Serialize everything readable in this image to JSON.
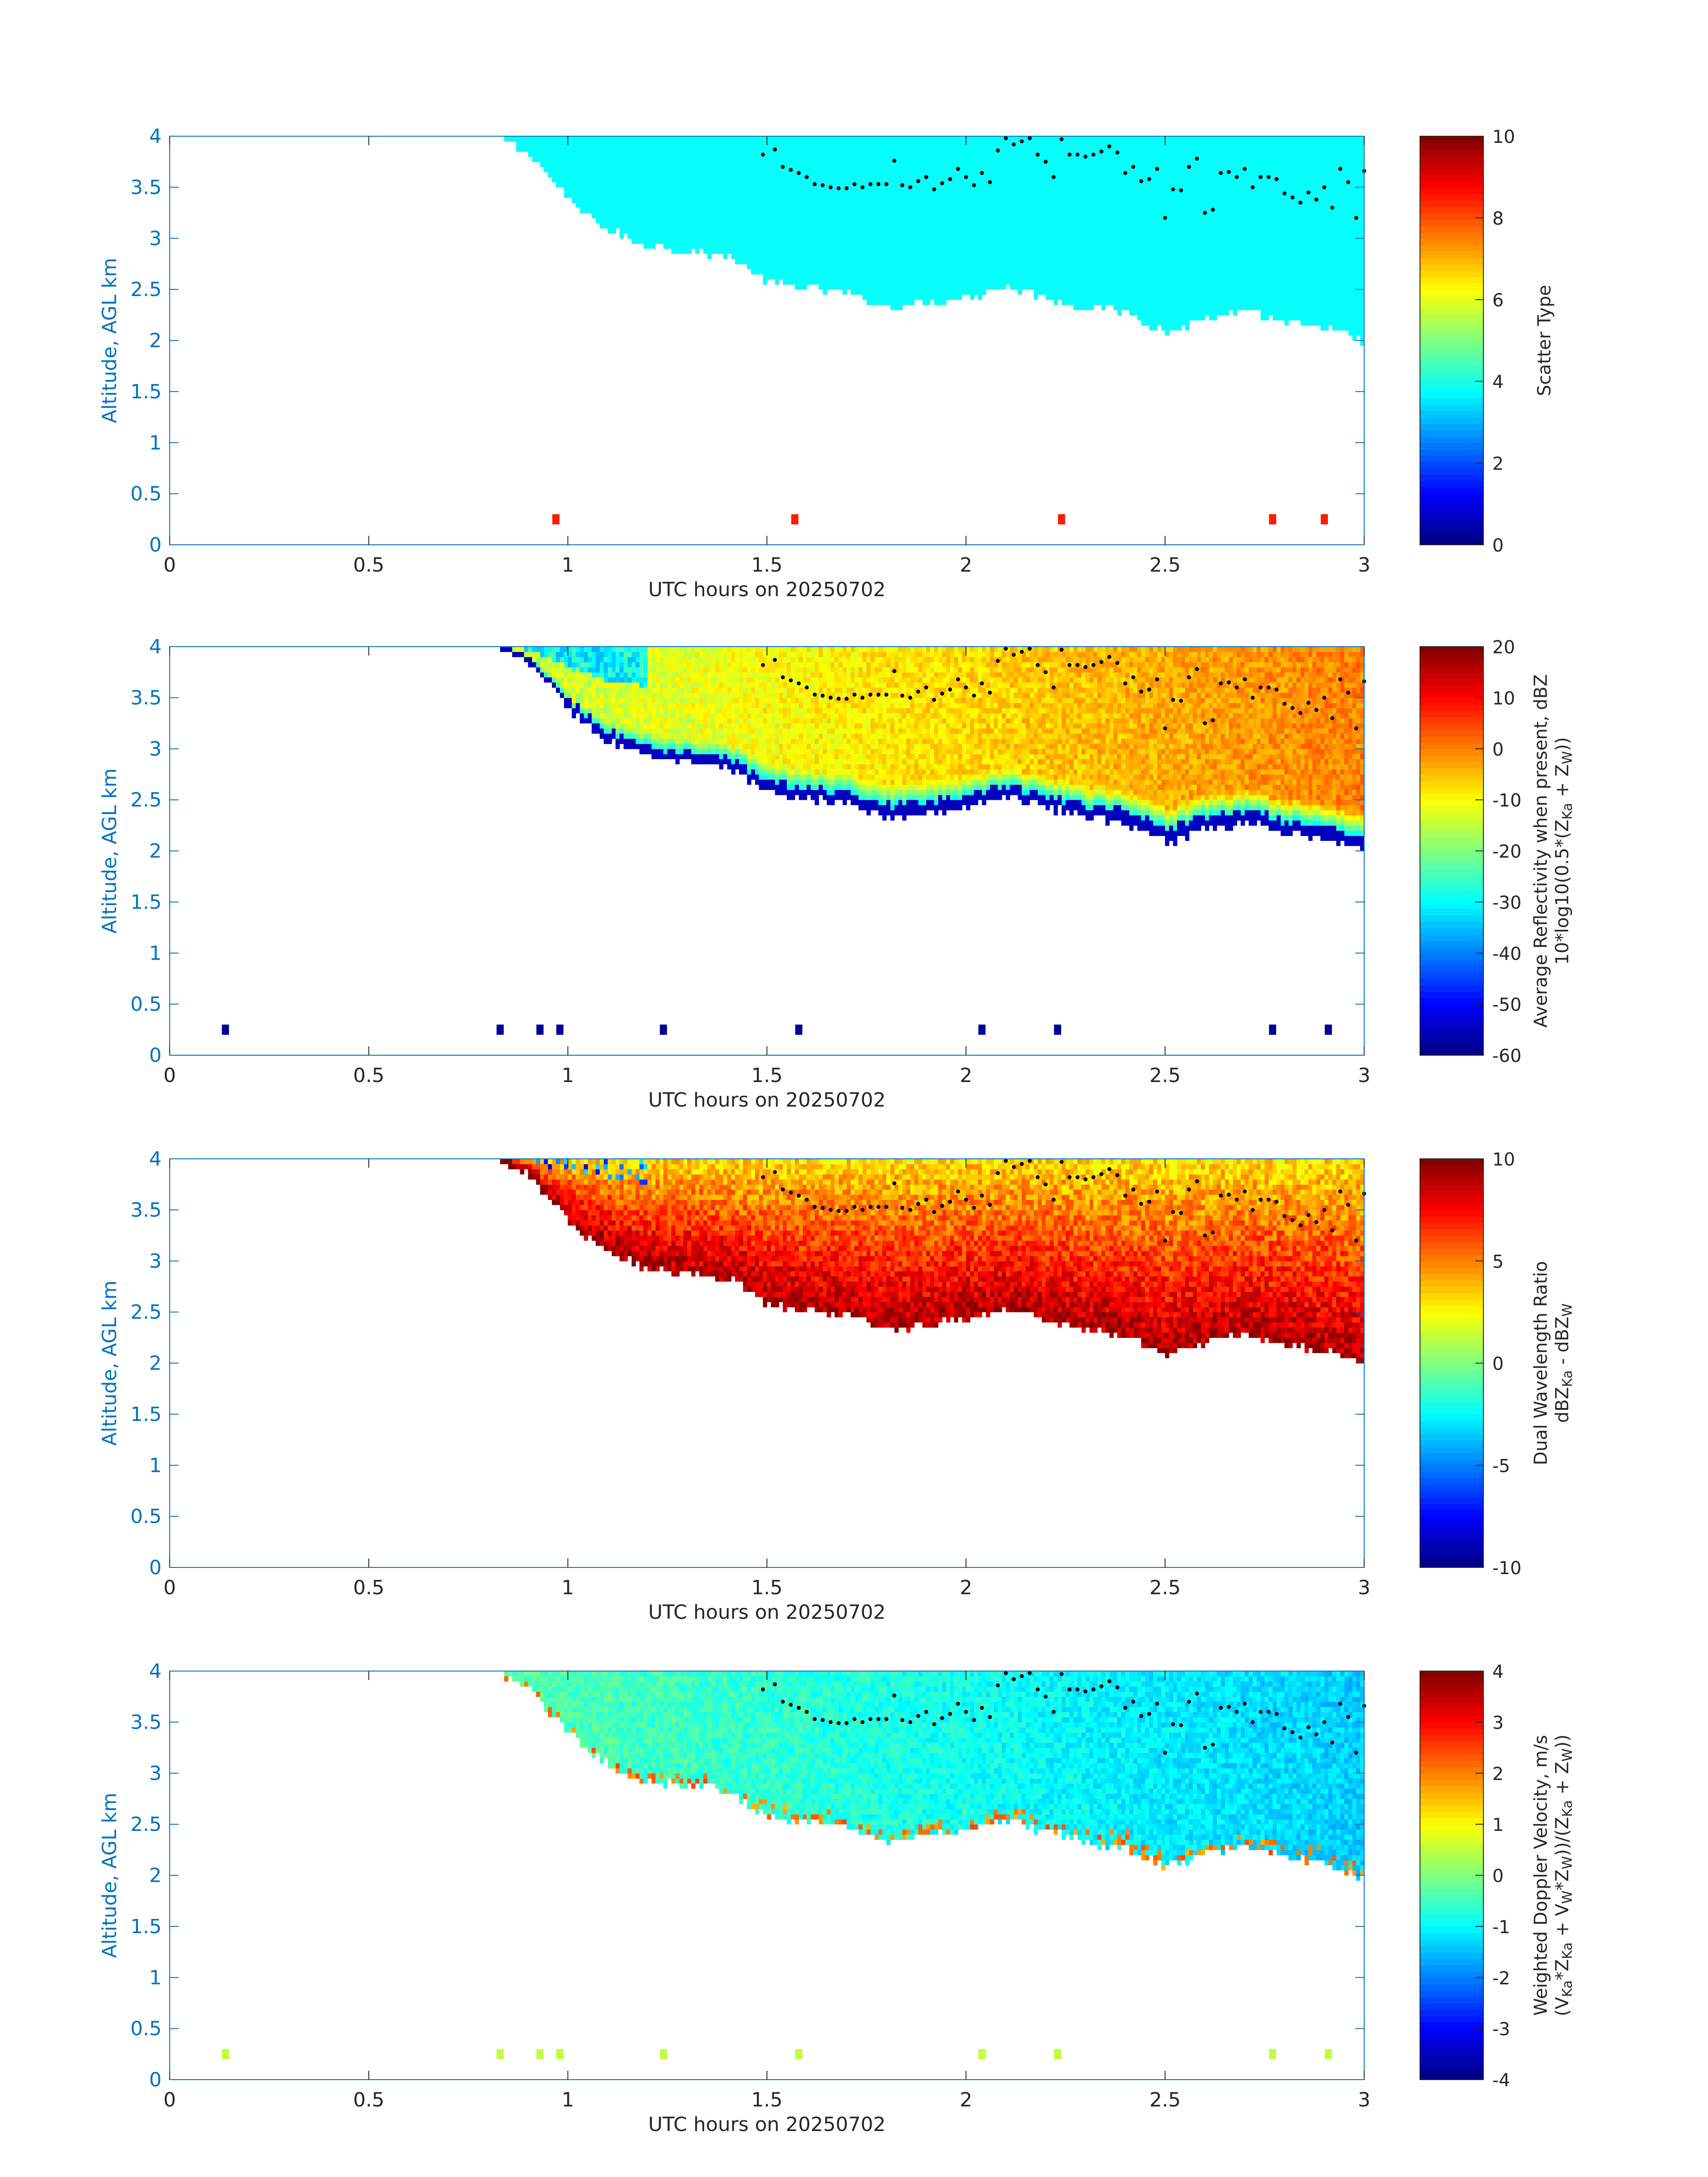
{
  "figure": {
    "shared": {
      "xlabel": "UTC hours on 20250702",
      "ylabel": "Altitude, AGL km",
      "xticks": [
        "0",
        "0.5",
        "1",
        "1.5",
        "2",
        "2.5",
        "3"
      ],
      "yticks": [
        "0",
        "0.5",
        "1",
        "1.5",
        "2",
        "2.5",
        "3",
        "3.5",
        "4"
      ],
      "xlim": [
        0,
        3
      ],
      "ylim": [
        0,
        4
      ],
      "axis_color": "#0072bd"
    }
  },
  "chart_data": [
    {
      "type": "heatmap",
      "xlabel": "UTC hours on 20250702",
      "ylabel": "Altitude, AGL km",
      "xlim": [
        0,
        3
      ],
      "ylim": [
        0,
        4
      ],
      "colorbar": {
        "label_lines": [
          "Scatter Type"
        ],
        "clim": [
          0,
          10
        ],
        "ticks": [
          "0",
          "2",
          "4",
          "6",
          "8",
          "10"
        ],
        "colormap": "jet"
      },
      "cloud": {
        "value": 3.8,
        "start_hour": 0.82,
        "top_km": 4.0,
        "base_km": [
          [
            0.82,
            4.0
          ],
          [
            0.9,
            3.85
          ],
          [
            1.0,
            3.4
          ],
          [
            1.1,
            3.1
          ],
          [
            1.2,
            2.95
          ],
          [
            1.3,
            2.9
          ],
          [
            1.4,
            2.85
          ],
          [
            1.5,
            2.6
          ],
          [
            1.55,
            2.55
          ],
          [
            1.7,
            2.5
          ],
          [
            1.8,
            2.35
          ],
          [
            1.9,
            2.4
          ],
          [
            2.0,
            2.45
          ],
          [
            2.1,
            2.55
          ],
          [
            2.2,
            2.45
          ],
          [
            2.3,
            2.35
          ],
          [
            2.4,
            2.3
          ],
          [
            2.5,
            2.1
          ],
          [
            2.6,
            2.25
          ],
          [
            2.7,
            2.3
          ],
          [
            2.8,
            2.2
          ],
          [
            2.9,
            2.15
          ],
          [
            3.0,
            2.0
          ]
        ]
      },
      "near_surface_marks": [
        {
          "hour": 0.97,
          "value": 8.5
        },
        {
          "hour": 1.57,
          "value": 8.5
        },
        {
          "hour": 2.24,
          "value": 8.5
        },
        {
          "hour": 2.77,
          "value": 8.5
        },
        {
          "hour": 2.9,
          "value": 8.5
        }
      ]
    },
    {
      "type": "heatmap",
      "xlabel": "UTC hours on 20250702",
      "ylabel": "Altitude, AGL km",
      "xlim": [
        0,
        3
      ],
      "ylim": [
        0,
        4
      ],
      "colorbar": {
        "label_lines": [
          "Average Reflectivity when present, dBZ",
          "10*log10(0.5*(Z",
          "Ka",
          " + Z",
          "W",
          "))"
        ],
        "clim": [
          -60,
          20
        ],
        "ticks": [
          "-60",
          "-50",
          "-40",
          "-30",
          "-20",
          "-10",
          "0",
          "10",
          "20"
        ],
        "colormap": "jet"
      },
      "cloud": {
        "profile": "reflectivity",
        "base_km": [
          [
            0.82,
            4.0
          ],
          [
            0.9,
            3.85
          ],
          [
            1.0,
            3.4
          ],
          [
            1.1,
            3.1
          ],
          [
            1.2,
            2.95
          ],
          [
            1.3,
            2.9
          ],
          [
            1.4,
            2.85
          ],
          [
            1.5,
            2.6
          ],
          [
            1.55,
            2.55
          ],
          [
            1.7,
            2.5
          ],
          [
            1.8,
            2.35
          ],
          [
            1.9,
            2.4
          ],
          [
            2.0,
            2.45
          ],
          [
            2.1,
            2.55
          ],
          [
            2.2,
            2.45
          ],
          [
            2.3,
            2.35
          ],
          [
            2.4,
            2.3
          ],
          [
            2.5,
            2.1
          ],
          [
            2.6,
            2.25
          ],
          [
            2.7,
            2.3
          ],
          [
            2.8,
            2.2
          ],
          [
            2.9,
            2.15
          ],
          [
            3.0,
            2.0
          ]
        ],
        "typical_dbz": {
          "edge": -55,
          "lower": -30,
          "core_early": -15,
          "core_late": 0
        }
      },
      "near_surface_marks": [
        {
          "hour": 0.14,
          "value": -58
        },
        {
          "hour": 0.83,
          "value": -58
        },
        {
          "hour": 0.93,
          "value": -58
        },
        {
          "hour": 0.98,
          "value": -58
        },
        {
          "hour": 1.24,
          "value": -58
        },
        {
          "hour": 1.58,
          "value": -58
        },
        {
          "hour": 2.04,
          "value": -58
        },
        {
          "hour": 2.23,
          "value": -58
        },
        {
          "hour": 2.77,
          "value": -58
        },
        {
          "hour": 2.91,
          "value": -58
        }
      ]
    },
    {
      "type": "heatmap",
      "xlabel": "UTC hours on 20250702",
      "ylabel": "Altitude, AGL km",
      "xlim": [
        0,
        3
      ],
      "ylim": [
        0,
        4
      ],
      "colorbar": {
        "label_lines": [
          "Dual Wavelength Ratio",
          "dBZ",
          "Ka",
          " - dBZ",
          "W"
        ],
        "clim": [
          -10,
          10
        ],
        "ticks": [
          "-10",
          "-5",
          "0",
          "5",
          "10"
        ],
        "colormap": "jet"
      },
      "cloud": {
        "profile": "dwr",
        "base_km": [
          [
            0.82,
            4.0
          ],
          [
            0.9,
            3.85
          ],
          [
            1.0,
            3.4
          ],
          [
            1.1,
            3.1
          ],
          [
            1.2,
            2.95
          ],
          [
            1.3,
            2.9
          ],
          [
            1.4,
            2.85
          ],
          [
            1.5,
            2.6
          ],
          [
            1.55,
            2.55
          ],
          [
            1.7,
            2.5
          ],
          [
            1.8,
            2.35
          ],
          [
            1.9,
            2.4
          ],
          [
            2.0,
            2.45
          ],
          [
            2.1,
            2.55
          ],
          [
            2.2,
            2.45
          ],
          [
            2.3,
            2.35
          ],
          [
            2.4,
            2.3
          ],
          [
            2.5,
            2.1
          ],
          [
            2.6,
            2.25
          ],
          [
            2.7,
            2.3
          ],
          [
            2.8,
            2.2
          ],
          [
            2.9,
            2.15
          ],
          [
            3.0,
            2.0
          ]
        ],
        "typical_dwr": {
          "top": 3,
          "middle": 6,
          "base": 9
        }
      },
      "near_surface_marks": []
    },
    {
      "type": "heatmap",
      "xlabel": "UTC hours on 20250702",
      "ylabel": "Altitude, AGL km",
      "xlim": [
        0,
        3
      ],
      "ylim": [
        0,
        4
      ],
      "colorbar": {
        "label_lines": [
          "Weighted Doppler Velocity, m/s",
          "(V",
          "Ka",
          "*Z",
          "Ka",
          " + V",
          "W",
          "*Z",
          "W",
          "))/(Z",
          "Ka",
          " + Z",
          "W",
          "))"
        ],
        "clim": [
          -4,
          4
        ],
        "ticks": [
          "-4",
          "-3",
          "-2",
          "-1",
          "0",
          "1",
          "2",
          "3",
          "4"
        ],
        "colormap": "jet"
      },
      "cloud": {
        "profile": "velocity",
        "base_km": [
          [
            0.82,
            4.0
          ],
          [
            0.9,
            3.85
          ],
          [
            1.0,
            3.4
          ],
          [
            1.1,
            3.1
          ],
          [
            1.2,
            2.95
          ],
          [
            1.3,
            2.9
          ],
          [
            1.4,
            2.85
          ],
          [
            1.5,
            2.6
          ],
          [
            1.55,
            2.55
          ],
          [
            1.7,
            2.5
          ],
          [
            1.8,
            2.35
          ],
          [
            1.9,
            2.4
          ],
          [
            2.0,
            2.45
          ],
          [
            2.1,
            2.55
          ],
          [
            2.2,
            2.45
          ],
          [
            2.3,
            2.35
          ],
          [
            2.4,
            2.3
          ],
          [
            2.5,
            2.1
          ],
          [
            2.6,
            2.25
          ],
          [
            2.7,
            2.3
          ],
          [
            2.8,
            2.2
          ],
          [
            2.9,
            2.15
          ],
          [
            3.0,
            2.0
          ]
        ],
        "typical_velocity": {
          "early": -0.3,
          "late": -1.4
        }
      },
      "near_surface_marks": [
        {
          "hour": 0.14,
          "value": 0.5
        },
        {
          "hour": 0.83,
          "value": 0.5
        },
        {
          "hour": 0.93,
          "value": 0.5
        },
        {
          "hour": 0.98,
          "value": 0.5
        },
        {
          "hour": 1.24,
          "value": 0.5
        },
        {
          "hour": 1.58,
          "value": 0.5
        },
        {
          "hour": 2.04,
          "value": 0.5
        },
        {
          "hour": 2.23,
          "value": 0.5
        },
        {
          "hour": 2.77,
          "value": 0.5
        },
        {
          "hour": 2.91,
          "value": 0.5
        }
      ]
    }
  ],
  "dots_series": {
    "description_color": "#000000",
    "points": [
      [
        1.49,
        3.82
      ],
      [
        1.52,
        3.87
      ],
      [
        1.54,
        3.7
      ],
      [
        1.56,
        3.67
      ],
      [
        1.58,
        3.64
      ],
      [
        1.6,
        3.6
      ],
      [
        1.62,
        3.53
      ],
      [
        1.64,
        3.52
      ],
      [
        1.66,
        3.5
      ],
      [
        1.68,
        3.49
      ],
      [
        1.7,
        3.49
      ],
      [
        1.72,
        3.53
      ],
      [
        1.74,
        3.5
      ],
      [
        1.76,
        3.53
      ],
      [
        1.78,
        3.53
      ],
      [
        1.8,
        3.53
      ],
      [
        1.82,
        3.76
      ],
      [
        1.84,
        3.52
      ],
      [
        1.86,
        3.5
      ],
      [
        1.88,
        3.56
      ],
      [
        1.9,
        3.6
      ],
      [
        1.92,
        3.48
      ],
      [
        1.94,
        3.54
      ],
      [
        1.96,
        3.58
      ],
      [
        1.98,
        3.68
      ],
      [
        2.0,
        3.6
      ],
      [
        2.02,
        3.52
      ],
      [
        2.04,
        3.64
      ],
      [
        2.06,
        3.55
      ],
      [
        2.08,
        3.86
      ],
      [
        2.1,
        3.98
      ],
      [
        2.12,
        3.92
      ],
      [
        2.14,
        3.95
      ],
      [
        2.16,
        3.98
      ],
      [
        2.18,
        3.82
      ],
      [
        2.2,
        3.75
      ],
      [
        2.22,
        3.6
      ],
      [
        2.24,
        3.97
      ],
      [
        2.26,
        3.82
      ],
      [
        2.28,
        3.82
      ],
      [
        2.3,
        3.8
      ],
      [
        2.32,
        3.82
      ],
      [
        2.34,
        3.85
      ],
      [
        2.36,
        3.9
      ],
      [
        2.38,
        3.84
      ],
      [
        2.4,
        3.64
      ],
      [
        2.42,
        3.7
      ],
      [
        2.44,
        3.56
      ],
      [
        2.46,
        3.58
      ],
      [
        2.48,
        3.68
      ],
      [
        2.5,
        3.2
      ],
      [
        2.52,
        3.48
      ],
      [
        2.54,
        3.47
      ],
      [
        2.56,
        3.7
      ],
      [
        2.58,
        3.78
      ],
      [
        2.6,
        3.25
      ],
      [
        2.62,
        3.28
      ],
      [
        2.64,
        3.64
      ],
      [
        2.66,
        3.65
      ],
      [
        2.68,
        3.6
      ],
      [
        2.7,
        3.68
      ],
      [
        2.72,
        3.5
      ],
      [
        2.74,
        3.6
      ],
      [
        2.76,
        3.6
      ],
      [
        2.78,
        3.58
      ],
      [
        2.8,
        3.44
      ],
      [
        2.82,
        3.4
      ],
      [
        2.84,
        3.35
      ],
      [
        2.86,
        3.45
      ],
      [
        2.88,
        3.38
      ],
      [
        2.9,
        3.5
      ],
      [
        2.92,
        3.3
      ],
      [
        2.94,
        3.68
      ],
      [
        2.96,
        3.55
      ],
      [
        2.98,
        3.2
      ],
      [
        3.0,
        3.66
      ]
    ]
  }
}
